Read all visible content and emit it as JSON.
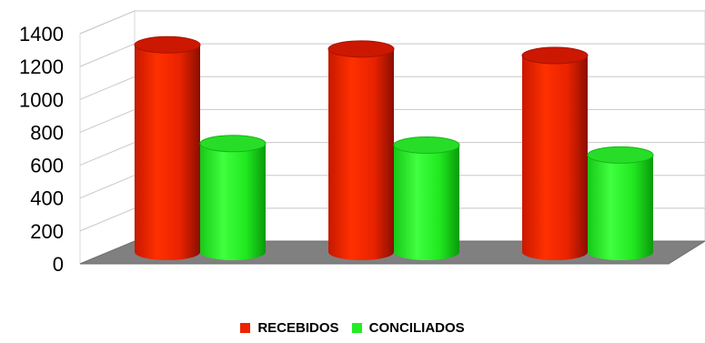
{
  "chart_data": {
    "type": "bar",
    "title": "",
    "xlabel": "",
    "ylabel": "",
    "categories": [
      "",
      "",
      ""
    ],
    "ylim": [
      0,
      1400
    ],
    "yticks": [
      0,
      200,
      400,
      600,
      800,
      1000,
      1200,
      1400
    ],
    "grid": true,
    "legend_position": "bottom",
    "series": [
      {
        "name": "RECEBIDOS",
        "color": "#ee2200",
        "values": [
          1260,
          1235,
          1195
        ]
      },
      {
        "name": "CONCILIADOS",
        "color": "#22ee22",
        "values": [
          660,
          650,
          590
        ]
      }
    ]
  }
}
